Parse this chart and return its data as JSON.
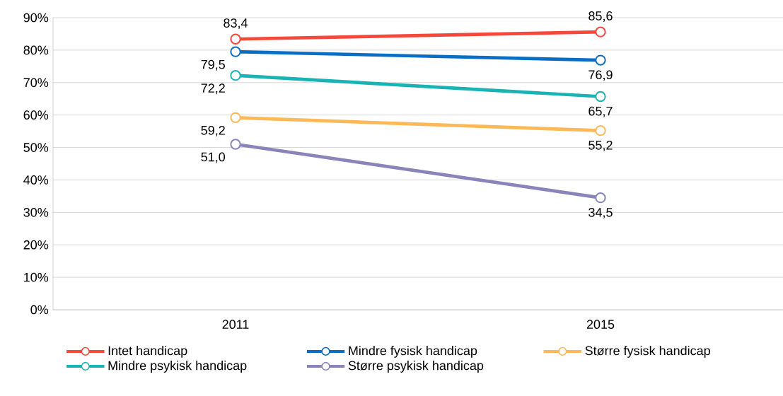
{
  "chart_data": {
    "type": "line",
    "categories": [
      "2011",
      "2015"
    ],
    "series": [
      {
        "name": "Intet handicap",
        "color": "#f5483b",
        "values": [
          83.4,
          85.6
        ],
        "value_labels": [
          "83,4",
          "85,6"
        ]
      },
      {
        "name": "Mindre fysisk handicap",
        "color": "#0a6fc4",
        "values": [
          79.5,
          76.9
        ],
        "value_labels": [
          "79,5",
          "76,9"
        ]
      },
      {
        "name": "Større fysisk handicap",
        "color": "#fdb857",
        "values": [
          59.2,
          55.2
        ],
        "value_labels": [
          "59,2",
          "55,2"
        ]
      },
      {
        "name": "Mindre psykisk handicap",
        "color": "#1ab3b3",
        "values": [
          72.2,
          65.7
        ],
        "value_labels": [
          "72,2",
          "65,7"
        ]
      },
      {
        "name": "Større psykisk handicap",
        "color": "#8a84bb",
        "values": [
          51.0,
          34.5
        ],
        "value_labels": [
          "51,0",
          "34,5"
        ]
      }
    ],
    "ylim": [
      0,
      90
    ],
    "yticks": [
      {
        "value": 0,
        "label": "0%"
      },
      {
        "value": 10,
        "label": "10%"
      },
      {
        "value": 20,
        "label": "20%"
      },
      {
        "value": 30,
        "label": "30%"
      },
      {
        "value": 40,
        "label": "40%"
      },
      {
        "value": 50,
        "label": "50%"
      },
      {
        "value": 60,
        "label": "60%"
      },
      {
        "value": 70,
        "label": "70%"
      },
      {
        "value": 80,
        "label": "80%"
      },
      {
        "value": 90,
        "label": "90%"
      }
    ],
    "grid": "y",
    "legend": "bottom",
    "marker": "circle"
  }
}
